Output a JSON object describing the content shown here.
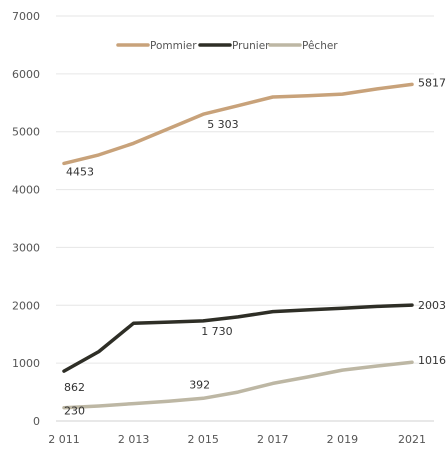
{
  "chart_data": {
    "type": "line",
    "title": "",
    "xlabel": "",
    "ylabel": "",
    "x": [
      2011,
      2012,
      2013,
      2014,
      2015,
      2016,
      2017,
      2018,
      2019,
      2020,
      2021
    ],
    "xtick_labels": [
      "2 011",
      "2 013",
      "2 015",
      "2 017",
      "2 019",
      "2021"
    ],
    "xtick_values": [
      2011,
      2013,
      2015,
      2017,
      2019,
      2021
    ],
    "yticks": [
      0,
      1000,
      2000,
      3000,
      4000,
      5000,
      6000,
      7000
    ],
    "ylim": [
      0,
      7000
    ],
    "xlim": [
      2011,
      2021
    ],
    "grid": "horizontal",
    "legend_position": "top",
    "series": [
      {
        "name": "Pommier",
        "color": "#c8a27a",
        "values": [
          4453,
          4600,
          4800,
          5050,
          5303,
          5450,
          5600,
          5620,
          5650,
          5740,
          5817
        ]
      },
      {
        "name": "Prunier",
        "color": "#2e2e26",
        "values": [
          862,
          1200,
          1690,
          1710,
          1730,
          1800,
          1890,
          1920,
          1950,
          1980,
          2003
        ]
      },
      {
        "name": "Pêcher",
        "color": "#bdb7a4",
        "values": [
          230,
          260,
          300,
          340,
          392,
          500,
          650,
          760,
          880,
          950,
          1016
        ]
      }
    ],
    "data_labels": [
      {
        "series": 0,
        "x": 2011,
        "text": "4453"
      },
      {
        "series": 0,
        "x": 2015,
        "text": "5 303"
      },
      {
        "series": 0,
        "x": 2021,
        "text": "5817"
      },
      {
        "series": 1,
        "x": 2011,
        "text": "862"
      },
      {
        "series": 1,
        "x": 2015,
        "text": "1 730"
      },
      {
        "series": 1,
        "x": 2021,
        "text": "2003"
      },
      {
        "series": 2,
        "x": 2011,
        "text": "230"
      },
      {
        "series": 2,
        "x": 2015,
        "text": "392"
      },
      {
        "series": 2,
        "x": 2021,
        "text": "1016"
      }
    ]
  }
}
